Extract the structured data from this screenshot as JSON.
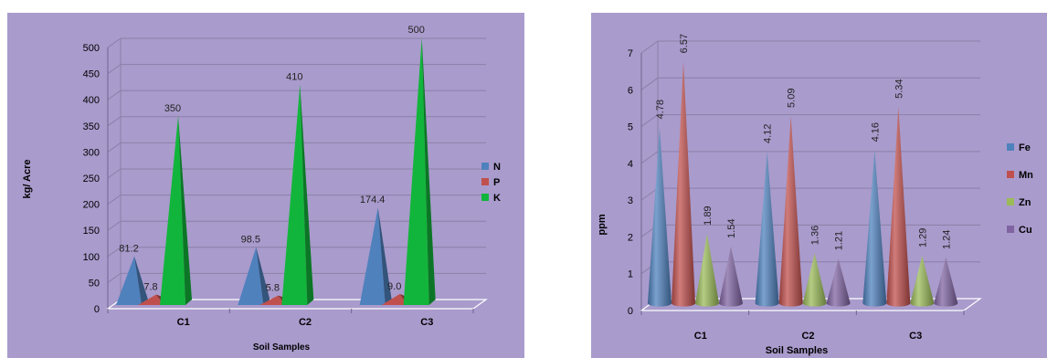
{
  "chart_data": [
    {
      "type": "bar",
      "mark": "pyramid",
      "categories": [
        "C1",
        "C2",
        "C3"
      ],
      "xlabel": "Soil Samples",
      "ylabel": "kg/ Acre",
      "ylim": [
        0,
        500
      ],
      "yticks": [
        "0",
        "50",
        "100",
        "150",
        "200",
        "250",
        "300",
        "350",
        "400",
        "450",
        "500"
      ],
      "grid": true,
      "legend_position": "right",
      "series": [
        {
          "name": "N",
          "color": "#4f81bd",
          "values": [
            81.2,
            98.5,
            174.4
          ],
          "labels": [
            "81.2",
            "98.5",
            "174.4"
          ]
        },
        {
          "name": "P",
          "color": "#c0504d",
          "values": [
            7.8,
            5.8,
            9.0
          ],
          "labels": [
            "7.8",
            "5.8",
            "9.0"
          ]
        },
        {
          "name": "K",
          "color": "#12b53b",
          "values": [
            350,
            410,
            500
          ],
          "labels": [
            "350",
            "410",
            "500"
          ]
        }
      ]
    },
    {
      "type": "bar",
      "mark": "cone",
      "categories": [
        "C1",
        "C2",
        "C3"
      ],
      "xlabel": "Soil Samples",
      "ylabel": "ppm",
      "ylim": [
        0,
        7
      ],
      "yticks": [
        "0",
        "1",
        "2",
        "3",
        "4",
        "5",
        "6",
        "7"
      ],
      "grid": true,
      "legend_position": "right",
      "series": [
        {
          "name": "Fe",
          "color": "#4f81bd",
          "values": [
            4.78,
            4.12,
            4.16
          ],
          "labels": [
            "4.78",
            "4.12",
            "4.16"
          ]
        },
        {
          "name": "Mn",
          "color": "#c0504d",
          "values": [
            6.57,
            5.09,
            5.34
          ],
          "labels": [
            "6.57",
            "5.09",
            "5.34"
          ]
        },
        {
          "name": "Zn",
          "color": "#9bbb59",
          "values": [
            1.89,
            1.36,
            1.29
          ],
          "labels": [
            "1.89",
            "1.36",
            "1.29"
          ]
        },
        {
          "name": "Cu",
          "color": "#8064a2",
          "values": [
            1.54,
            1.21,
            1.24
          ],
          "labels": [
            "1.54",
            "1.21",
            "1.24"
          ]
        }
      ]
    }
  ]
}
